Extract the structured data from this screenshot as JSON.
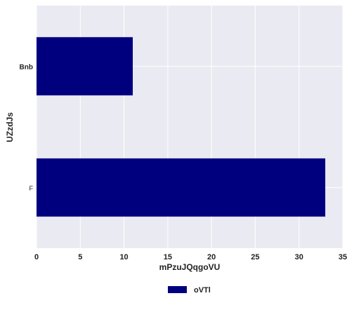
{
  "chart_data": {
    "type": "bar",
    "orientation": "horizontal",
    "categories": [
      "Bnb",
      "F"
    ],
    "series": [
      {
        "name": "oVTl",
        "values": [
          11,
          33
        ],
        "color": "#00007f"
      }
    ],
    "title": "",
    "xlabel": "mPzuJQqgoVU",
    "ylabel": "UZzdJs",
    "xlim": [
      0,
      35
    ],
    "xticks": [
      "0",
      "5",
      "10",
      "15",
      "20",
      "25",
      "30",
      "35"
    ],
    "grid": true,
    "legend_position": "bottom-center",
    "background_color": "#eaeaf2",
    "grid_color": "#ffffff"
  }
}
